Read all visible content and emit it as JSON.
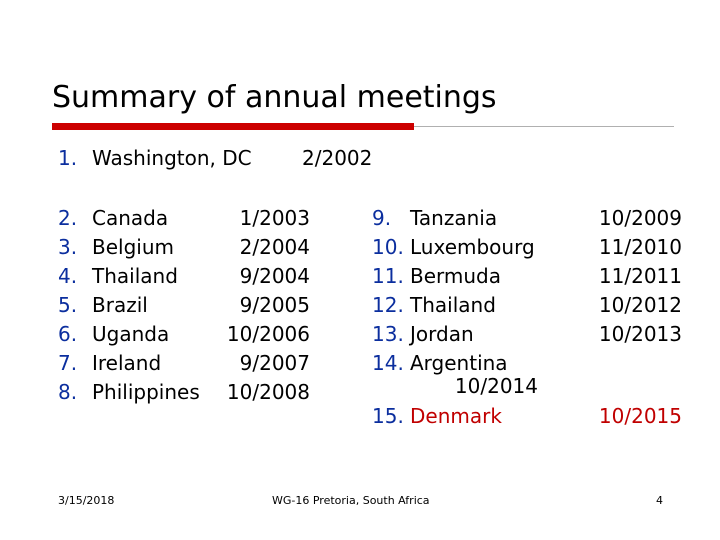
{
  "slide": {
    "title": "Summary of annual meetings",
    "first_item": {
      "num": "1.",
      "name": "Washington, DC",
      "date": "2/2002"
    },
    "left_list": [
      {
        "num": "2.",
        "name": "Canada",
        "date": "1/2003"
      },
      {
        "num": "3.",
        "name": "Belgium",
        "date": "2/2004"
      },
      {
        "num": "4.",
        "name": "Thailand",
        "date": "9/2004"
      },
      {
        "num": "5.",
        "name": "Brazil",
        "date": "9/2005"
      },
      {
        "num": "6.",
        "name": "Uganda",
        "date": "10/2006"
      },
      {
        "num": "7.",
        "name": "Ireland",
        "date": "9/2007"
      },
      {
        "num": "8.",
        "name": "Philippines",
        "date": "10/2008"
      }
    ],
    "right_list": [
      {
        "num": "9.",
        "name": "Tanzania",
        "date": "10/2009"
      },
      {
        "num": "10.",
        "name": "Luxembourg",
        "date": "11/2010"
      },
      {
        "num": "11.",
        "name": "Bermuda",
        "date": "11/2011"
      },
      {
        "num": "12.",
        "name": "Thailand",
        "date": "10/2012"
      },
      {
        "num": "13.",
        "name": "Jordan",
        "date": "10/2013"
      },
      {
        "num": "14.",
        "name": "Argentina",
        "date": "10/2014"
      },
      {
        "num": "15.",
        "name": "Denmark",
        "date": "10/2015"
      }
    ],
    "footer": {
      "date": "3/15/2018",
      "center": "WG-16 Pretoria, South Africa",
      "page": "4"
    },
    "colors": {
      "accent": "#cc0000",
      "numbering": "#0b2e9e",
      "highlight": "#c00000"
    }
  }
}
